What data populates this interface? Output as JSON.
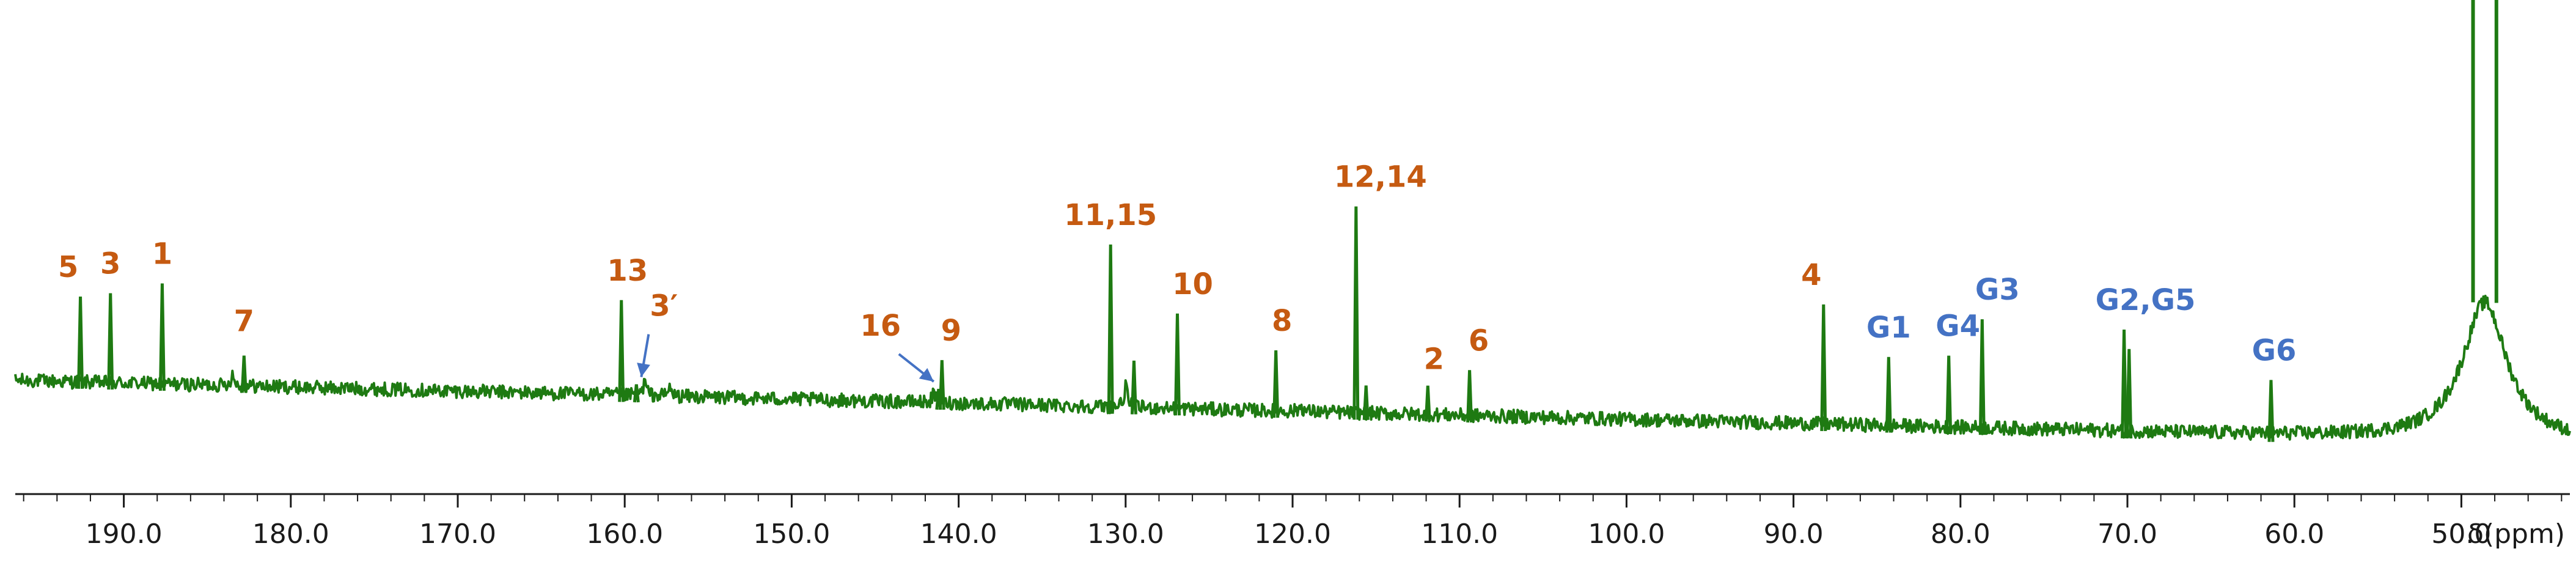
{
  "colors": {
    "spectrum": "#1e7a12",
    "aglycone_label": "#c55a11",
    "glucose_label": "#4472c4",
    "arrow": "#4472c4",
    "axis": "#1a1a1a"
  },
  "chart_data": {
    "type": "line",
    "title": "",
    "xlabel": "δ(ppm)",
    "ylabel": "",
    "x_axis_reversed": true,
    "xlim": [
      196.5,
      43.5
    ],
    "major_ticks": [
      190.0,
      180.0,
      170.0,
      160.0,
      150.0,
      140.0,
      130.0,
      120.0,
      110.0,
      100.0,
      90.0,
      80.0,
      70.0,
      60.0,
      50.0
    ],
    "tick_labels": [
      "190.0",
      "180.0",
      "170.0",
      "160.0",
      "150.0",
      "140.0",
      "130.0",
      "120.0",
      "110.0",
      "100.0",
      "90.0",
      "80.0",
      "70.0",
      "60.0",
      "50.0"
    ],
    "minor_tick_step": 2.0,
    "grid": false,
    "legend": "none",
    "baseline": {
      "start": [
        196.5,
        0.0
      ],
      "end": [
        43.5,
        -0.45
      ],
      "noise_amplitude": 0.05,
      "unlabeled_small_peaks": [
        [
          183.5,
          0.08
        ],
        [
          158.8,
          0.1
        ],
        [
          157.3,
          0.06
        ],
        [
          141.5,
          0.06
        ],
        [
          130.0,
          0.15
        ],
        [
          119.5,
          0.04
        ]
      ]
    },
    "peaks": [
      {
        "ppm": 192.6,
        "height": 0.62,
        "label": "5",
        "group": "aglycone"
      },
      {
        "ppm": 190.8,
        "height": 0.65,
        "label": "3",
        "group": "aglycone"
      },
      {
        "ppm": 187.7,
        "height": 0.73,
        "label": "1",
        "group": "aglycone"
      },
      {
        "ppm": 182.8,
        "height": 0.22,
        "label": "7",
        "group": "aglycone"
      },
      {
        "ppm": 160.2,
        "height": 0.69,
        "label": "13",
        "group": "aglycone"
      },
      {
        "ppm": 159.3,
        "height": 0.08,
        "label": "3′",
        "group": "aglycone",
        "arrow": true
      },
      {
        "ppm": 141.2,
        "height": 0.1,
        "label": "16",
        "group": "aglycone",
        "arrow": true
      },
      {
        "ppm": 141.0,
        "height": 0.31,
        "label": "9",
        "group": "aglycone"
      },
      {
        "ppm": 130.9,
        "height": 1.18,
        "label": "11,15",
        "group": "aglycone"
      },
      {
        "ppm": 129.5,
        "height": 0.34,
        "label": "",
        "group": "aglycone"
      },
      {
        "ppm": 126.9,
        "height": 0.69,
        "label": "10",
        "group": "aglycone"
      },
      {
        "ppm": 121.0,
        "height": 0.44,
        "label": "8",
        "group": "aglycone"
      },
      {
        "ppm": 116.2,
        "height": 1.5,
        "label": "12,14",
        "group": "aglycone"
      },
      {
        "ppm": 115.6,
        "height": 0.2,
        "label": "",
        "group": "aglycone"
      },
      {
        "ppm": 111.9,
        "height": 0.21,
        "label": "2",
        "group": "aglycone"
      },
      {
        "ppm": 109.4,
        "height": 0.33,
        "label": "6",
        "group": "aglycone"
      },
      {
        "ppm": 88.2,
        "height": 0.87,
        "label": "4",
        "group": "aglycone"
      },
      {
        "ppm": 84.3,
        "height": 0.5,
        "label": "G1",
        "group": "glucose"
      },
      {
        "ppm": 80.7,
        "height": 0.52,
        "label": "G4",
        "group": "glucose"
      },
      {
        "ppm": 78.7,
        "height": 0.79,
        "label": "G3",
        "group": "glucose"
      },
      {
        "ppm": 70.2,
        "height": 0.74,
        "label": "G2,G5",
        "group": "glucose"
      },
      {
        "ppm": 69.9,
        "height": 0.6,
        "label": "",
        "group": "glucose"
      },
      {
        "ppm": 61.4,
        "height": 0.4,
        "label": "G6",
        "group": "glucose"
      }
    ],
    "solvent_peak": {
      "ppm": 48.6,
      "height": 7.0,
      "split": [
        49.3,
        47.9
      ],
      "clipped": true
    }
  }
}
